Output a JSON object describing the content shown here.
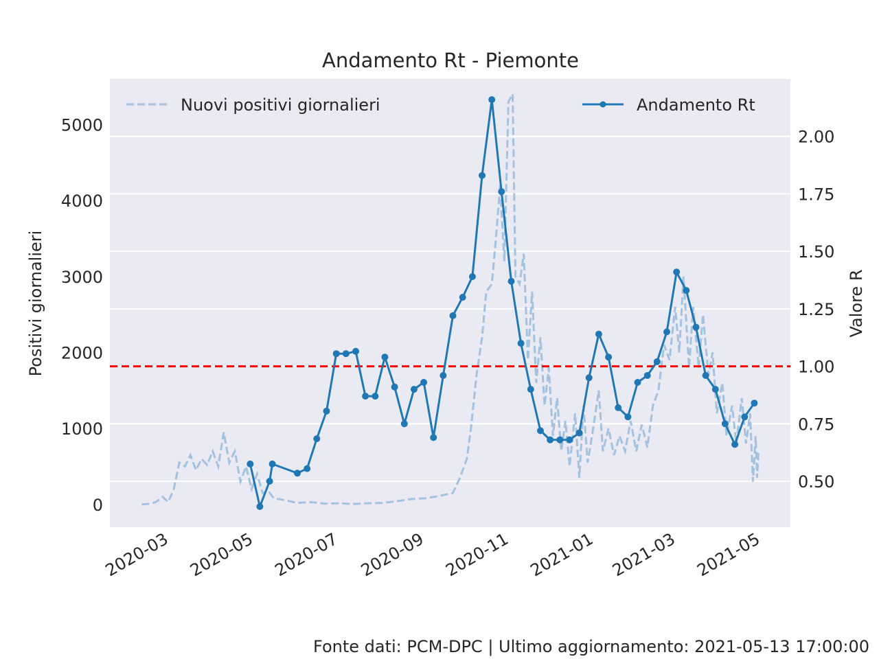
{
  "colors": {
    "background_plot": "#eaeaf2",
    "grid": "#ffffff",
    "rt_line": "#1f77b4",
    "positivi_line": "#a3c2de",
    "threshold": "#ff0000"
  },
  "chart_data": {
    "type": "line",
    "title": "Andamento Rt - Piemonte",
    "ylabel_left": "Positivi giornalieri",
    "ylabel_right": "Valore R",
    "xlim": [
      "2020-02-01",
      "2021-06-05"
    ],
    "ylim_left": [
      -300,
      5600
    ],
    "ylim_right": [
      0.3,
      2.25
    ],
    "y_ticks_left": [
      0,
      1000,
      2000,
      3000,
      4000,
      5000
    ],
    "y_ticks_right": [
      0.5,
      0.75,
      1.0,
      1.25,
      1.5,
      1.75,
      2.0
    ],
    "y_tick_labels_right": [
      "0.50",
      "0.75",
      "1.00",
      "1.25",
      "1.50",
      "1.75",
      "2.00"
    ],
    "x_ticks": [
      "2020-03",
      "2020-05",
      "2020-07",
      "2020-09",
      "2020-11",
      "2021-01",
      "2021-03",
      "2021-05"
    ],
    "threshold": 1.0,
    "legend": {
      "left": "Nuovi positivi giornalieri",
      "right": "Andamento Rt"
    },
    "series": [
      {
        "name": "Nuovi positivi giornalieri",
        "axis": "left",
        "style": "dashed",
        "points": [
          [
            "2020-02-24",
            0
          ],
          [
            "2020-03-01",
            10
          ],
          [
            "2020-03-05",
            30
          ],
          [
            "2020-03-10",
            100
          ],
          [
            "2020-03-14",
            30
          ],
          [
            "2020-03-18",
            200
          ],
          [
            "2020-03-22",
            550
          ],
          [
            "2020-03-26",
            500
          ],
          [
            "2020-03-30",
            650
          ],
          [
            "2020-04-03",
            450
          ],
          [
            "2020-04-07",
            600
          ],
          [
            "2020-04-11",
            520
          ],
          [
            "2020-04-15",
            700
          ],
          [
            "2020-04-19",
            500
          ],
          [
            "2020-04-23",
            950
          ],
          [
            "2020-04-27",
            550
          ],
          [
            "2020-05-01",
            700
          ],
          [
            "2020-05-05",
            300
          ],
          [
            "2020-05-09",
            500
          ],
          [
            "2020-05-13",
            200
          ],
          [
            "2020-05-17",
            400
          ],
          [
            "2020-05-21",
            150
          ],
          [
            "2020-05-25",
            180
          ],
          [
            "2020-05-29",
            80
          ],
          [
            "2020-06-05",
            60
          ],
          [
            "2020-06-15",
            20
          ],
          [
            "2020-06-25",
            30
          ],
          [
            "2020-07-05",
            10
          ],
          [
            "2020-07-15",
            15
          ],
          [
            "2020-07-25",
            5
          ],
          [
            "2020-08-05",
            15
          ],
          [
            "2020-08-15",
            20
          ],
          [
            "2020-08-25",
            40
          ],
          [
            "2020-09-05",
            70
          ],
          [
            "2020-09-15",
            80
          ],
          [
            "2020-09-25",
            110
          ],
          [
            "2020-10-05",
            150
          ],
          [
            "2020-10-10",
            350
          ],
          [
            "2020-10-15",
            600
          ],
          [
            "2020-10-18",
            1000
          ],
          [
            "2020-10-22",
            1700
          ],
          [
            "2020-10-26",
            2200
          ],
          [
            "2020-10-29",
            2800
          ],
          [
            "2020-11-02",
            2900
          ],
          [
            "2020-11-05",
            3500
          ],
          [
            "2020-11-08",
            4200
          ],
          [
            "2020-11-11",
            3200
          ],
          [
            "2020-11-14",
            5300
          ],
          [
            "2020-11-17",
            5400
          ],
          [
            "2020-11-19",
            3000
          ],
          [
            "2020-11-22",
            2900
          ],
          [
            "2020-11-25",
            3300
          ],
          [
            "2020-11-28",
            1900
          ],
          [
            "2020-12-01",
            2800
          ],
          [
            "2020-12-04",
            1600
          ],
          [
            "2020-12-07",
            2200
          ],
          [
            "2020-12-10",
            1300
          ],
          [
            "2020-12-13",
            1800
          ],
          [
            "2020-12-16",
            900
          ],
          [
            "2020-12-19",
            1400
          ],
          [
            "2020-12-22",
            700
          ],
          [
            "2020-12-25",
            1100
          ],
          [
            "2020-12-28",
            500
          ],
          [
            "2021-01-01",
            1200
          ],
          [
            "2021-01-04",
            350
          ],
          [
            "2021-01-07",
            1300
          ],
          [
            "2021-01-10",
            550
          ],
          [
            "2021-01-14",
            1000
          ],
          [
            "2021-01-18",
            1500
          ],
          [
            "2021-01-21",
            700
          ],
          [
            "2021-01-25",
            1000
          ],
          [
            "2021-01-29",
            650
          ],
          [
            "2021-02-02",
            900
          ],
          [
            "2021-02-06",
            700
          ],
          [
            "2021-02-10",
            1100
          ],
          [
            "2021-02-14",
            700
          ],
          [
            "2021-02-18",
            1050
          ],
          [
            "2021-02-22",
            750
          ],
          [
            "2021-02-26",
            1300
          ],
          [
            "2021-03-02",
            1500
          ],
          [
            "2021-03-06",
            2100
          ],
          [
            "2021-03-10",
            1900
          ],
          [
            "2021-03-14",
            2600
          ],
          [
            "2021-03-17",
            2000
          ],
          [
            "2021-03-20",
            3000
          ],
          [
            "2021-03-24",
            1800
          ],
          [
            "2021-03-27",
            2600
          ],
          [
            "2021-03-31",
            1800
          ],
          [
            "2021-04-03",
            2500
          ],
          [
            "2021-04-07",
            1700
          ],
          [
            "2021-04-10",
            2000
          ],
          [
            "2021-04-13",
            1200
          ],
          [
            "2021-04-17",
            1600
          ],
          [
            "2021-04-20",
            900
          ],
          [
            "2021-04-24",
            1300
          ],
          [
            "2021-04-27",
            800
          ],
          [
            "2021-05-01",
            1400
          ],
          [
            "2021-05-04",
            800
          ],
          [
            "2021-05-07",
            1200
          ],
          [
            "2021-05-09",
            300
          ],
          [
            "2021-05-11",
            900
          ],
          [
            "2021-05-12",
            350
          ],
          [
            "2021-05-13",
            700
          ]
        ]
      },
      {
        "name": "Andamento Rt",
        "axis": "right",
        "style": "solid-markers",
        "points": [
          [
            "2020-05-12",
            0.575
          ],
          [
            "2020-05-19",
            0.39
          ],
          [
            "2020-05-26",
            0.5
          ],
          [
            "2020-05-28",
            0.575
          ],
          [
            "2020-06-15",
            0.535
          ],
          [
            "2020-06-22",
            0.555
          ],
          [
            "2020-06-29",
            0.685
          ],
          [
            "2020-07-06",
            0.805
          ],
          [
            "2020-07-13",
            1.055
          ],
          [
            "2020-07-20",
            1.055
          ],
          [
            "2020-07-27",
            1.065
          ],
          [
            "2020-08-03",
            0.87
          ],
          [
            "2020-08-10",
            0.87
          ],
          [
            "2020-08-17",
            1.04
          ],
          [
            "2020-08-24",
            0.91
          ],
          [
            "2020-08-31",
            0.75
          ],
          [
            "2020-09-07",
            0.9
          ],
          [
            "2020-09-14",
            0.93
          ],
          [
            "2020-09-21",
            0.69
          ],
          [
            "2020-09-28",
            0.96
          ],
          [
            "2020-10-05",
            1.22
          ],
          [
            "2020-10-12",
            1.3
          ],
          [
            "2020-10-19",
            1.39
          ],
          [
            "2020-10-26",
            1.83
          ],
          [
            "2020-11-02",
            2.16
          ],
          [
            "2020-11-09",
            1.76
          ],
          [
            "2020-11-16",
            1.37
          ],
          [
            "2020-11-23",
            1.1
          ],
          [
            "2020-11-30",
            0.9
          ],
          [
            "2020-12-07",
            0.72
          ],
          [
            "2020-12-14",
            0.68
          ],
          [
            "2020-12-21",
            0.68
          ],
          [
            "2020-12-28",
            0.68
          ],
          [
            "2021-01-04",
            0.71
          ],
          [
            "2021-01-11",
            0.95
          ],
          [
            "2021-01-18",
            1.14
          ],
          [
            "2021-01-25",
            1.04
          ],
          [
            "2021-02-01",
            0.82
          ],
          [
            "2021-02-08",
            0.78
          ],
          [
            "2021-02-15",
            0.93
          ],
          [
            "2021-02-22",
            0.96
          ],
          [
            "2021-03-01",
            1.02
          ],
          [
            "2021-03-08",
            1.15
          ],
          [
            "2021-03-15",
            1.41
          ],
          [
            "2021-03-22",
            1.33
          ],
          [
            "2021-03-29",
            1.17
          ],
          [
            "2021-04-05",
            0.96
          ],
          [
            "2021-04-12",
            0.9
          ],
          [
            "2021-04-19",
            0.75
          ],
          [
            "2021-04-26",
            0.66
          ],
          [
            "2021-05-03",
            0.78
          ],
          [
            "2021-05-10",
            0.84
          ]
        ]
      }
    ]
  },
  "footer": "Fonte dati: PCM-DPC | Ultimo aggiornamento: 2021-05-13 17:00:00"
}
